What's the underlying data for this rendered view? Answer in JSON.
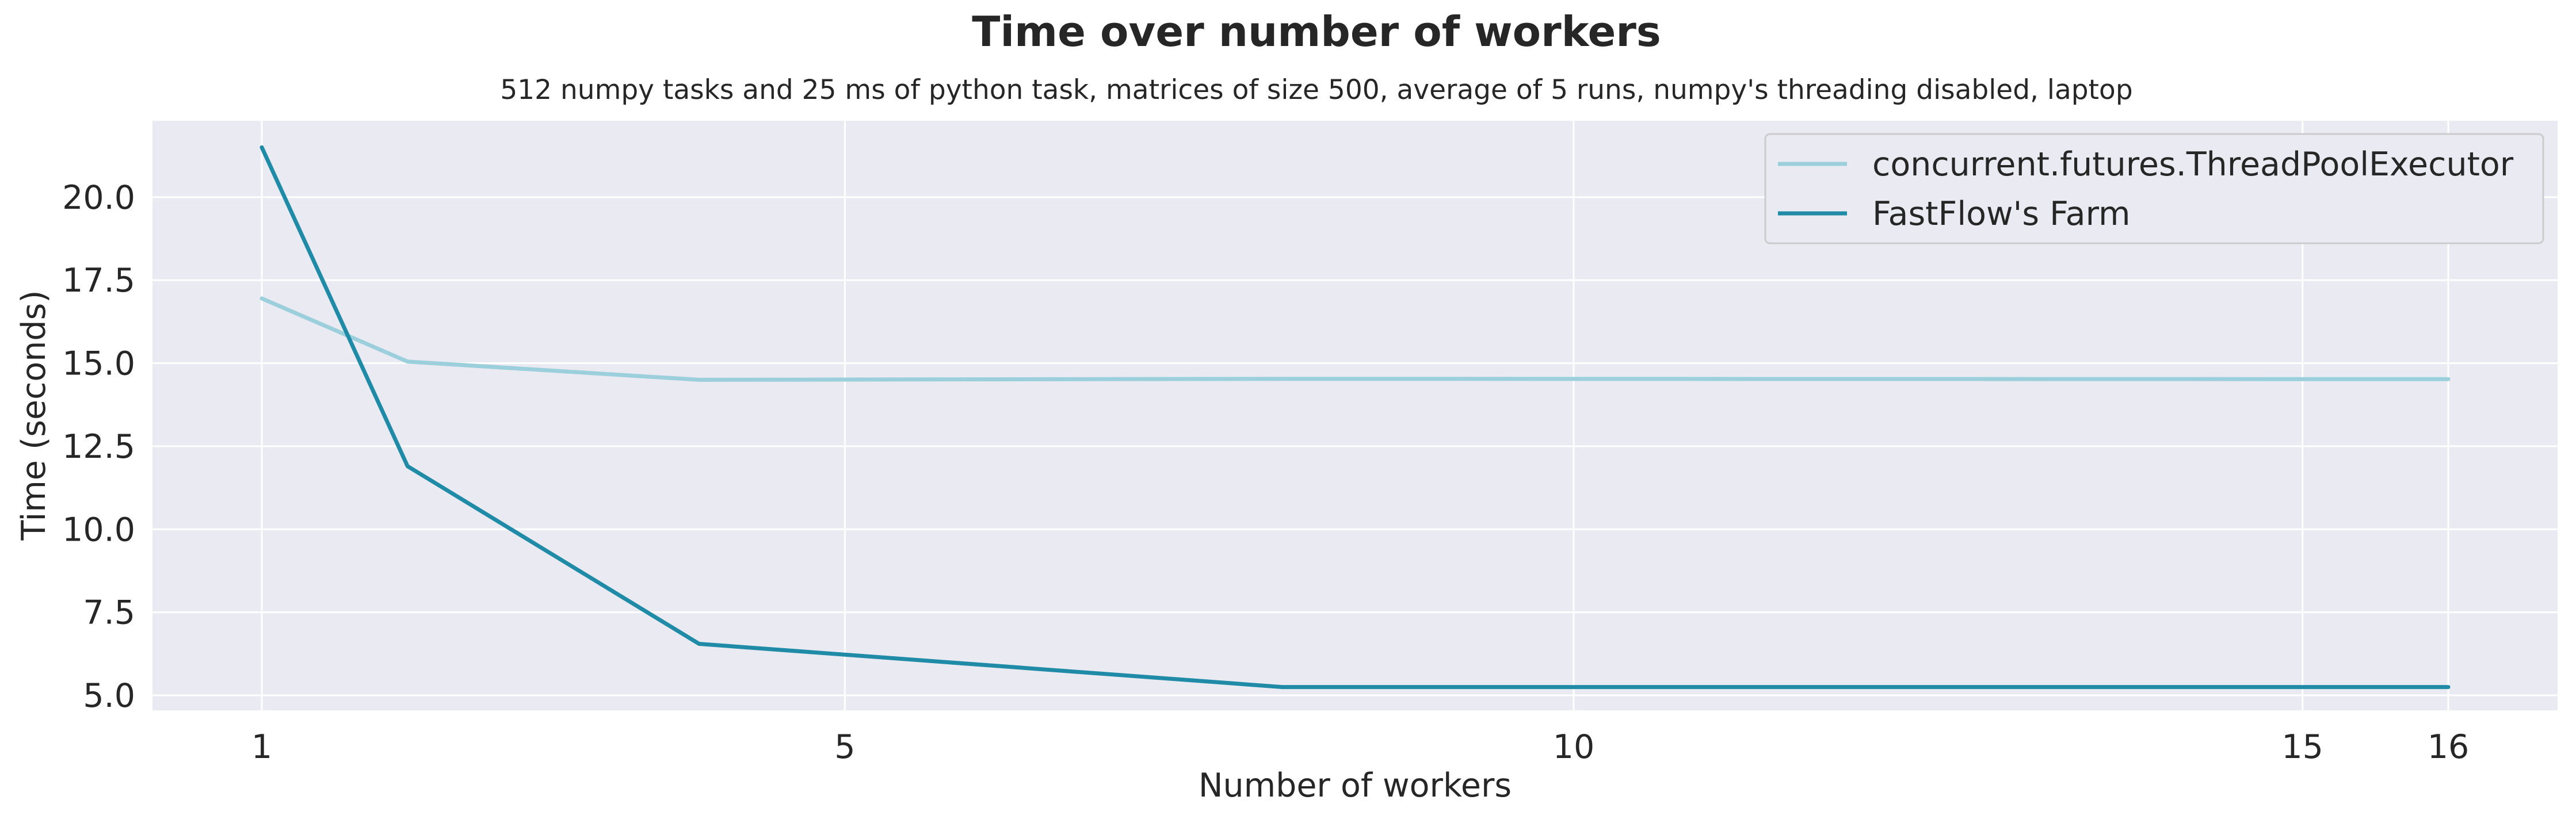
{
  "chart_data": {
    "type": "line",
    "title": "Time over number of workers",
    "subtitle": "512 numpy tasks and 25 ms of python task, matrices of size 500, average of 5 runs, numpy's threading disabled, laptop",
    "xlabel": "Number of workers",
    "ylabel": "Time (seconds)",
    "xlim": [
      0.25,
      16.75
    ],
    "ylim": [
      4.55,
      22.3
    ],
    "xticks": [
      1,
      5,
      10,
      15,
      16
    ],
    "xtick_labels": [
      "1",
      "5",
      "10",
      "15",
      "16"
    ],
    "yticks": [
      5.0,
      7.5,
      10.0,
      12.5,
      15.0,
      17.5,
      20.0
    ],
    "ytick_labels": [
      "5.0",
      "7.5",
      "10.0",
      "12.5",
      "15.0",
      "17.5",
      "20.0"
    ],
    "grid": true,
    "legend_position": "top-right",
    "series": [
      {
        "name": "concurrent.futures.ThreadPoolExecutor",
        "color": "#9ccfdc",
        "x": [
          1,
          2,
          4,
          8,
          16
        ],
        "y": [
          16.95,
          15.05,
          14.5,
          14.53,
          14.52
        ]
      },
      {
        "name": "FastFlow's Farm",
        "color": "#1f8ba6",
        "x": [
          1,
          2,
          4,
          8,
          16
        ],
        "y": [
          21.5,
          11.9,
          6.55,
          5.25,
          5.25
        ]
      }
    ]
  }
}
